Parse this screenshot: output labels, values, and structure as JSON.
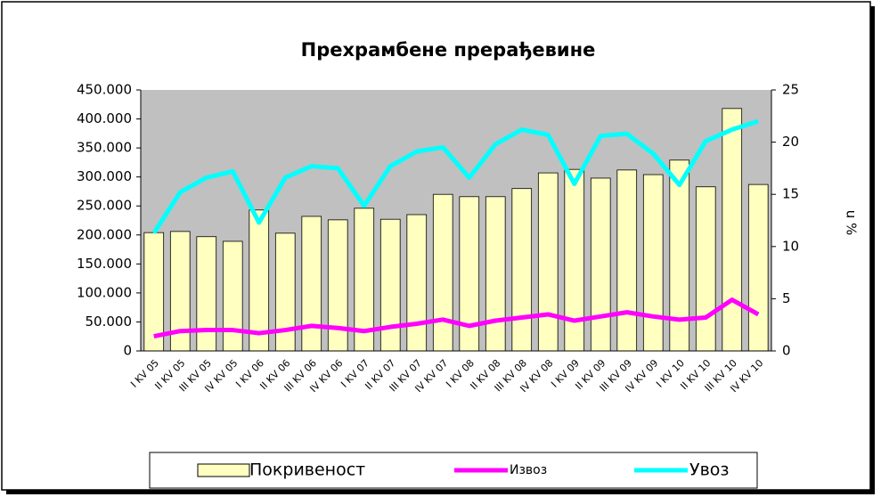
{
  "chart_data": {
    "type": "bar_line",
    "title": "Прехрамбене прерађевине",
    "y2label": "u %",
    "categories": [
      "I KV 05",
      "II KV 05",
      "III KV 05",
      "IV KV 05",
      "I KV 06",
      "II KV 06",
      "III KV 06",
      "IV KV 06",
      "I KV 07",
      "II KV 07",
      "III KV 07",
      "IV KV 07",
      "I KV 08",
      "II KV 08",
      "III KV 08",
      "IV KV 08",
      "I KV 09",
      "II KV 09",
      "III KV 09",
      "IV KV 09",
      "I KV 10",
      "II KV 10",
      "III KV 10",
      "IV KV 10"
    ],
    "series": [
      {
        "name": "Покривеност",
        "color": "#ffffc0",
        "type": "bar",
        "values": [
          204000,
          206000,
          197000,
          189000,
          243000,
          203000,
          232000,
          226000,
          246000,
          227000,
          235000,
          270000,
          266000,
          266000,
          280000,
          307000,
          313000,
          298000,
          312000,
          304000,
          329000,
          283000,
          418000,
          287000
        ]
      },
      {
        "name": "Извоз",
        "color": "#ff00ff",
        "type": "line",
        "axis": "y2",
        "values": [
          1.4,
          1.9,
          2.0,
          2.0,
          1.7,
          2.0,
          2.4,
          2.2,
          1.9,
          2.3,
          2.6,
          3.0,
          2.4,
          2.9,
          3.2,
          3.5,
          2.9,
          3.3,
          3.7,
          3.3,
          3.0,
          3.2,
          4.9,
          3.5
        ]
      },
      {
        "name": "Увоз",
        "color": "#00ffff",
        "type": "line",
        "axis": "y2",
        "values": [
          11.3,
          15.2,
          16.6,
          17.2,
          12.3,
          16.6,
          17.7,
          17.5,
          13.9,
          17.7,
          19.1,
          19.5,
          16.6,
          19.8,
          21.2,
          20.7,
          16.0,
          20.6,
          20.8,
          18.9,
          15.9,
          20.1,
          21.2,
          22.0
        ]
      }
    ],
    "ylim": [
      0,
      450000
    ],
    "yticks": [
      0,
      {
        "value": 50000,
        "label": "50.000"
      },
      {
        "value": 100000,
        "label": "100.000"
      },
      {
        "value": 150000,
        "label": "150.000"
      },
      {
        "value": 200000,
        "label": "200.000"
      },
      {
        "value": 250000,
        "label": "250.000"
      },
      {
        "value": 300000,
        "label": "300.000"
      },
      {
        "value": 350000,
        "label": "350.000"
      },
      {
        "value": 400000,
        "label": "400.000"
      },
      {
        "value": 450000,
        "label": "450.000"
      }
    ],
    "y2lim": [
      0,
      25
    ],
    "y2ticks": [
      0,
      5,
      10,
      15,
      20,
      25
    ],
    "plot_background": "#c0c0c0",
    "legend": "bottom"
  }
}
